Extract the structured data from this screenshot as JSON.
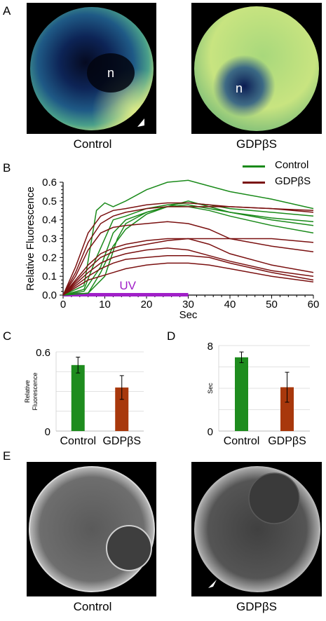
{
  "panels": {
    "A": {
      "letter": "A",
      "left_caption": "Control",
      "right_caption": "GDPβS",
      "nucleus_label": "n"
    },
    "B": {
      "letter": "B",
      "legend": [
        {
          "name": "Control",
          "color": "#1a8a1a"
        },
        {
          "name": "GDPβS",
          "color": "#7a1010"
        }
      ],
      "uv_label": "UV",
      "uv_color": "#a020c8"
    },
    "C": {
      "letter": "C"
    },
    "D": {
      "letter": "D"
    },
    "E": {
      "letter": "E",
      "left_caption": "Control",
      "right_caption": "GDPβS"
    }
  },
  "chart_data": [
    {
      "id": "B",
      "type": "line",
      "xlabel": "Sec",
      "ylabel": "Relative Fluorescence",
      "xlim": [
        0,
        60
      ],
      "ylim": [
        0,
        0.6
      ],
      "xticks": [
        "0",
        "10",
        "20",
        "30",
        "40",
        "50",
        "60"
      ],
      "yticks": [
        "0.0",
        "0.1",
        "0.2",
        "0.3",
        "0.4",
        "0.5",
        "0.6"
      ],
      "annotation": {
        "text": "UV",
        "x_range": [
          0,
          30
        ]
      },
      "series": [
        {
          "name": "Control",
          "color": "#1a8a1a",
          "x": [
            0,
            5,
            8,
            10,
            12,
            15,
            20,
            25,
            30,
            35,
            40,
            50,
            60
          ],
          "y": [
            0,
            0.05,
            0.45,
            0.49,
            0.47,
            0.5,
            0.56,
            0.6,
            0.61,
            0.58,
            0.55,
            0.51,
            0.46
          ]
        },
        {
          "name": "Control",
          "color": "#1a8a1a",
          "x": [
            0,
            5,
            8,
            12,
            15,
            20,
            25,
            30,
            35,
            40,
            50,
            60
          ],
          "y": [
            0,
            0.03,
            0.2,
            0.4,
            0.42,
            0.46,
            0.48,
            0.49,
            0.48,
            0.46,
            0.44,
            0.42
          ]
        },
        {
          "name": "Control",
          "color": "#1a8a1a",
          "x": [
            0,
            5,
            9,
            12,
            15,
            20,
            25,
            30,
            35,
            40,
            50,
            60
          ],
          "y": [
            0,
            0.02,
            0.15,
            0.33,
            0.4,
            0.44,
            0.47,
            0.48,
            0.46,
            0.44,
            0.41,
            0.39
          ]
        },
        {
          "name": "Control",
          "color": "#1a8a1a",
          "x": [
            0,
            6,
            9,
            12,
            15,
            20,
            25,
            30,
            35,
            40,
            50,
            60
          ],
          "y": [
            0,
            0.01,
            0.12,
            0.26,
            0.35,
            0.43,
            0.47,
            0.47,
            0.45,
            0.42,
            0.37,
            0.33
          ]
        },
        {
          "name": "Control",
          "color": "#1a8a1a",
          "x": [
            0,
            6,
            10,
            13,
            15,
            20,
            25,
            30,
            35,
            40,
            50,
            60
          ],
          "y": [
            0,
            0.01,
            0.1,
            0.3,
            0.38,
            0.44,
            0.47,
            0.5,
            0.47,
            0.44,
            0.4,
            0.37
          ]
        },
        {
          "name": "GDPβS",
          "color": "#7a1010",
          "x": [
            0,
            3,
            6,
            9,
            12,
            15,
            20,
            25,
            30,
            35,
            40,
            50,
            60
          ],
          "y": [
            0,
            0.15,
            0.33,
            0.42,
            0.45,
            0.46,
            0.48,
            0.49,
            0.49,
            0.48,
            0.47,
            0.46,
            0.45
          ]
        },
        {
          "name": "GDPβS",
          "color": "#7a1010",
          "x": [
            0,
            3,
            6,
            9,
            12,
            15,
            20,
            25,
            30,
            35,
            40,
            50,
            60
          ],
          "y": [
            0,
            0.12,
            0.28,
            0.38,
            0.42,
            0.44,
            0.46,
            0.47,
            0.47,
            0.47,
            0.47,
            0.46,
            0.44
          ]
        },
        {
          "name": "GDPβS",
          "color": "#7a1010",
          "x": [
            0,
            3,
            6,
            9,
            12,
            15,
            20,
            25,
            30,
            35,
            40,
            50,
            60
          ],
          "y": [
            0,
            0.1,
            0.24,
            0.33,
            0.36,
            0.37,
            0.38,
            0.39,
            0.38,
            0.35,
            0.3,
            0.26,
            0.23
          ]
        },
        {
          "name": "GDPβS",
          "color": "#7a1010",
          "x": [
            0,
            3,
            6,
            9,
            12,
            15,
            20,
            25,
            30,
            35,
            40,
            50,
            60
          ],
          "y": [
            0,
            0.08,
            0.16,
            0.22,
            0.25,
            0.27,
            0.29,
            0.3,
            0.3,
            0.3,
            0.3,
            0.3,
            0.28
          ]
        },
        {
          "name": "GDPβS",
          "color": "#7a1010",
          "x": [
            0,
            3,
            6,
            9,
            12,
            15,
            20,
            25,
            30,
            35,
            40,
            50,
            60
          ],
          "y": [
            0,
            0.07,
            0.14,
            0.2,
            0.23,
            0.25,
            0.27,
            0.29,
            0.3,
            0.27,
            0.22,
            0.16,
            0.12
          ]
        },
        {
          "name": "GDPβS",
          "color": "#7a1010",
          "x": [
            0,
            3,
            6,
            9,
            12,
            15,
            20,
            25,
            30,
            35,
            40,
            50,
            60
          ],
          "y": [
            0,
            0.06,
            0.12,
            0.17,
            0.2,
            0.22,
            0.24,
            0.25,
            0.24,
            0.21,
            0.18,
            0.13,
            0.1
          ]
        },
        {
          "name": "GDPβS",
          "color": "#7a1010",
          "x": [
            0,
            3,
            6,
            9,
            12,
            15,
            20,
            25,
            30,
            35,
            40,
            50,
            60
          ],
          "y": [
            0,
            0.05,
            0.1,
            0.14,
            0.17,
            0.19,
            0.2,
            0.21,
            0.21,
            0.2,
            0.17,
            0.12,
            0.08
          ]
        },
        {
          "name": "GDPβS",
          "color": "#7a1010",
          "x": [
            0,
            3,
            6,
            9,
            12,
            15,
            20,
            25,
            30,
            35,
            40,
            50,
            60
          ],
          "y": [
            0,
            0.04,
            0.08,
            0.1,
            0.12,
            0.14,
            0.16,
            0.17,
            0.17,
            0.16,
            0.14,
            0.1,
            0.07
          ]
        }
      ]
    },
    {
      "id": "C",
      "type": "bar",
      "ylabel": "Relative Fluorescence",
      "categories": [
        "Control",
        "GDPβS"
      ],
      "values": [
        0.5,
        0.33
      ],
      "errors": [
        0.06,
        0.09
      ],
      "ylim": [
        0,
        0.6
      ],
      "yticks": [
        "0",
        "0.6"
      ],
      "colors": [
        "#1e8c1e",
        "#a8380c"
      ]
    },
    {
      "id": "D",
      "type": "bar",
      "ylabel": "Sec",
      "categories": [
        "Control",
        "GDPβS"
      ],
      "values": [
        6.9,
        4.1
      ],
      "errors": [
        0.5,
        1.4
      ],
      "ylim": [
        0,
        8
      ],
      "yticks": [
        "0",
        "8"
      ],
      "colors": [
        "#1e8c1e",
        "#a8380c"
      ]
    }
  ]
}
